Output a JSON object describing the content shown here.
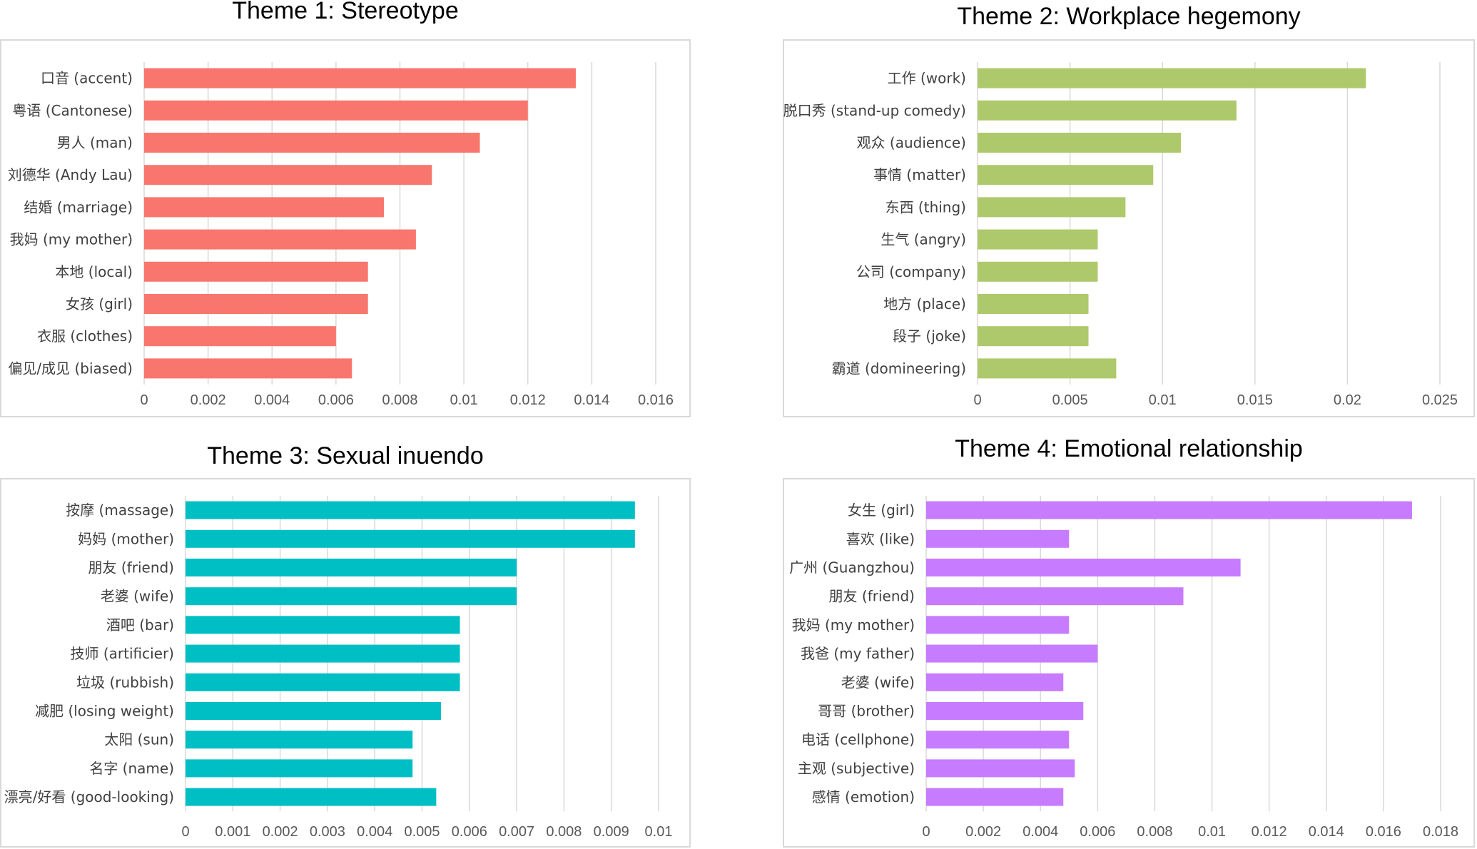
{
  "chart_data": [
    {
      "type": "bar",
      "orientation": "horizontal",
      "title": "Theme 1: Stereotype",
      "color": "#f8766d",
      "categories": [
        "口音 (accent)",
        "粤语 (Cantonese)",
        "男人 (man)",
        "刘德华 (Andy Lau)",
        "结婚 (marriage)",
        "我妈 (my mother)",
        "本地 (local)",
        "女孩 (girl)",
        "衣服 (clothes)",
        "偏见/成见 (biased)"
      ],
      "values": [
        0.0135,
        0.012,
        0.0105,
        0.009,
        0.0075,
        0.0085,
        0.007,
        0.007,
        0.006,
        0.0065
      ],
      "xlim": [
        0,
        0.016
      ],
      "xticks": [
        "0",
        "0.002",
        "0.004",
        "0.006",
        "0.008",
        "0.01",
        "0.012",
        "0.014",
        "0.016"
      ],
      "grid": true
    },
    {
      "type": "bar",
      "orientation": "horizontal",
      "title": "Theme 2: Workplace hegemony",
      "color": "#aec96b",
      "categories": [
        "工作 (work)",
        "脱口秀 (stand-up comedy)",
        "观众 (audience)",
        "事情 (matter)",
        "东西 (thing)",
        "生气 (angry)",
        "公司 (company)",
        "地方 (place)",
        "段子 (joke)",
        "霸道 (domineering)"
      ],
      "values": [
        0.021,
        0.014,
        0.011,
        0.0095,
        0.008,
        0.0065,
        0.0065,
        0.006,
        0.006,
        0.0075
      ],
      "xlim": [
        0,
        0.025
      ],
      "xticks": [
        "0",
        "0.005",
        "0.01",
        "0.015",
        "0.02",
        "0.025"
      ],
      "grid": true
    },
    {
      "type": "bar",
      "orientation": "horizontal",
      "title": "Theme 3: Sexual inuendo",
      "color": "#00bfc4",
      "categories": [
        "按摩 (massage)",
        "妈妈 (mother)",
        "朋友 (friend)",
        "老婆 (wife)",
        "酒吧 (bar)",
        "技师 (artificier)",
        "垃圾 (rubbish)",
        "减肥 (losing weight)",
        "太阳 (sun)",
        "名字 (name)",
        "漂亮/好看 (good-looking)"
      ],
      "values": [
        0.0095,
        0.0095,
        0.007,
        0.007,
        0.0058,
        0.0058,
        0.0058,
        0.0054,
        0.0048,
        0.0048,
        0.0053
      ],
      "xlim": [
        0,
        0.01
      ],
      "xticks": [
        "0",
        "0.001",
        "0.002",
        "0.003",
        "0.004",
        "0.005",
        "0.006",
        "0.007",
        "0.008",
        "0.009",
        "0.01"
      ],
      "grid": true
    },
    {
      "type": "bar",
      "orientation": "horizontal",
      "title": "Theme 4: Emotional relationship",
      "color": "#c77cff",
      "categories": [
        "女生 (girl)",
        "喜欢 (like)",
        "广州 (Guangzhou)",
        "朋友 (friend)",
        "我妈 (my mother)",
        "我爸 (my father)",
        "老婆 (wife)",
        "哥哥 (brother)",
        "电话 (cellphone)",
        "主观 (subjective)",
        "感情 (emotion)"
      ],
      "values": [
        0.017,
        0.005,
        0.011,
        0.009,
        0.005,
        0.006,
        0.0048,
        0.0055,
        0.005,
        0.0052,
        0.0048
      ],
      "xlim": [
        0,
        0.018
      ],
      "xticks": [
        "0",
        "0.002",
        "0.004",
        "0.006",
        "0.008",
        "0.01",
        "0.012",
        "0.014",
        "0.016",
        "0.018"
      ],
      "grid": true
    }
  ]
}
